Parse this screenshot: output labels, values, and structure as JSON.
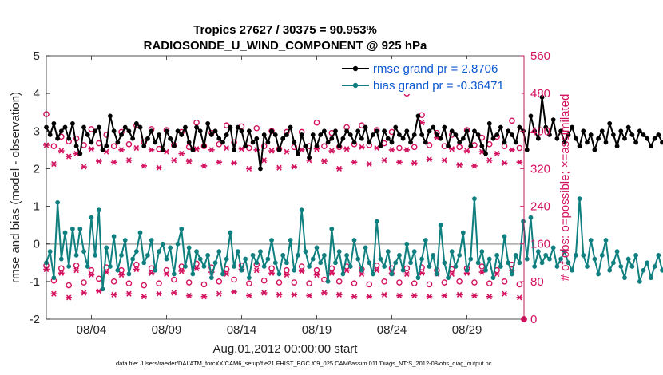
{
  "chart_data": {
    "type": "line",
    "title": [
      "Tropics 27627 / 30375 = 90.953%",
      "RADIOSONDE_U_WIND_COMPONENT @ 925 hPa"
    ],
    "xlabel": "Aug.01,2012 00:00:00 start",
    "ylabel_left": "rmse and bias (model - observation)",
    "ylabel_right": "# of obs: o=possible; ×=assimilated",
    "footer": "data file: /Users/raeder/DAI/ATM_forcXX/CAM6_setup/f.e21.FHIST_BGC.f09_025.CAM6assim.011/Diags_NTrS_2012-08/obs_diag_output.nc",
    "x_tick_labels": [
      "08/04",
      "08/09",
      "08/14",
      "08/19",
      "08/24",
      "08/29"
    ],
    "x_tick_days": [
      4,
      9,
      14,
      19,
      24,
      29
    ],
    "xlim_days": [
      1,
      32.8
    ],
    "ylim_left": [
      -2,
      5
    ],
    "y_ticks_left": [
      -2,
      -1,
      0,
      1,
      2,
      3,
      4,
      5
    ],
    "ylim_right": [
      0,
      560
    ],
    "y_ticks_right": [
      0,
      80,
      160,
      240,
      320,
      400,
      480,
      560
    ],
    "colors": {
      "rmse": "#000000",
      "bias": "#0f7f7f",
      "obs": "#d3125f",
      "zero_line": "#b3b3b3",
      "legend_text": "#0b57d0"
    },
    "series": [
      {
        "name": "rmse grand pr = 2.8706",
        "axis": "left",
        "step_days": 0.25,
        "start_day": 1,
        "values": [
          3.1,
          2.9,
          3.2,
          2.8,
          3.0,
          3.1,
          2.8,
          3.2,
          2.6,
          2.4,
          3.1,
          2.9,
          2.7,
          3.0,
          3.1,
          2.5,
          2.6,
          3.4,
          3.0,
          2.7,
          2.9,
          3.1,
          3.0,
          2.8,
          3.2,
          3.1,
          2.6,
          2.8,
          3.0,
          2.7,
          2.9,
          2.5,
          3.0,
          2.8,
          2.6,
          3.0,
          2.9,
          3.1,
          2.7,
          2.5,
          3.1,
          3.0,
          2.6,
          3.2,
          2.9,
          3.0,
          2.8,
          2.7,
          2.9,
          3.1,
          2.5,
          3.1,
          3.0,
          2.6,
          3.0,
          2.7,
          2.8,
          2.0,
          2.9,
          2.7,
          3.0,
          2.9,
          2.5,
          2.8,
          2.9,
          3.1,
          2.7,
          2.4,
          2.9,
          2.6,
          2.3,
          2.9,
          2.6,
          2.9,
          3.0,
          2.7,
          2.8,
          3.0,
          2.6,
          2.8,
          3.0,
          2.9,
          2.7,
          3.0,
          2.8,
          3.1,
          2.7,
          2.9,
          3.0,
          2.6,
          3.0,
          2.8,
          2.7,
          3.1,
          2.9,
          2.8,
          3.0,
          2.7,
          2.9,
          3.4,
          2.9,
          2.7,
          3.0,
          3.1,
          2.9,
          2.8,
          3.1,
          2.6,
          3.0,
          2.9,
          2.7,
          2.8,
          3.0,
          2.6,
          3.0,
          2.9,
          2.6,
          2.4,
          3.2,
          2.8,
          2.9,
          3.1,
          2.7,
          3.0,
          2.9,
          2.7,
          3.1,
          3.0,
          2.5,
          3.4,
          3.0,
          2.8,
          3.9,
          3.1,
          2.9,
          3.3,
          2.8,
          3.0,
          2.7,
          2.9,
          3.1,
          2.8,
          2.6,
          3.0,
          2.7,
          2.9,
          2.5,
          2.8,
          3.0,
          2.7,
          3.2,
          2.9,
          2.6,
          3.0,
          2.8,
          3.1,
          2.9,
          2.7,
          3.0,
          2.9,
          2.8,
          2.6,
          2.8,
          2.9,
          2.7,
          2.8,
          2.9,
          2.6,
          3.1,
          2.8,
          2.5
        ]
      },
      {
        "name": "bias grand pr = -0.36471",
        "axis": "left",
        "step_days": 0.25,
        "start_day": 1,
        "values": [
          -0.5,
          -0.2,
          -0.9,
          1.1,
          -0.4,
          0.3,
          -0.6,
          0.4,
          -0.3,
          0.4,
          -0.2,
          -0.6,
          0.7,
          -0.3,
          0.9,
          -1.2,
          -0.1,
          -0.6,
          0.2,
          -0.7,
          -0.3,
          0.1,
          -0.8,
          -0.4,
          -0.2,
          0.3,
          -0.5,
          -0.3,
          0.1,
          -0.7,
          -0.2,
          0.0,
          -0.4,
          -0.1,
          -0.8,
          0.0,
          0.4,
          -0.6,
          -0.1,
          -0.8,
          -0.2,
          -0.4,
          -0.6,
          -0.3,
          -0.9,
          -0.5,
          -0.2,
          -0.8,
          -0.4,
          0.3,
          -0.6,
          -0.2,
          -0.7,
          -0.4,
          -0.9,
          -0.3,
          -0.5,
          -0.2,
          -0.6,
          -0.4,
          0.1,
          -0.5,
          -0.8,
          -0.3,
          -0.5,
          0.1,
          -0.7,
          -0.3,
          0.9,
          -0.2,
          -0.6,
          -0.4,
          -0.1,
          -0.5,
          -0.3,
          -1.0,
          0.4,
          -0.5,
          -0.2,
          -0.8,
          -0.3,
          -0.6,
          0.1,
          -0.4,
          -0.7,
          -0.1,
          -0.5,
          -0.8,
          0.6,
          -0.4,
          -0.6,
          -0.2,
          -0.8,
          -0.5,
          -0.3,
          -0.7,
          0.0,
          -0.5,
          -0.2,
          -0.9,
          -0.4,
          0.1,
          -0.6,
          -0.3,
          -0.8,
          0.5,
          -0.5,
          -0.9,
          -0.2,
          -0.6,
          -0.3,
          0.3,
          -0.7,
          -0.4,
          1.2,
          -0.5,
          -0.2,
          -0.7,
          -0.4,
          -0.9,
          -0.3,
          -0.6,
          0.2,
          -0.5,
          -0.8,
          -0.3,
          -0.5,
          0.6,
          -0.4,
          0.7,
          -0.6,
          -0.2,
          -0.5,
          -0.3,
          -0.4,
          -0.1,
          -0.6,
          -0.4,
          -0.2,
          -0.5,
          -0.7,
          -0.3,
          1.2,
          -0.3,
          -0.6,
          0.1,
          -0.4,
          -0.8,
          -0.3,
          0.1,
          -0.7,
          -0.5,
          -0.2,
          -0.6,
          -0.9,
          -0.4,
          -0.6,
          -0.3,
          -1.0,
          -0.7,
          -0.5,
          -0.9,
          -0.6,
          -0.3,
          -0.7,
          -0.5,
          -0.2,
          -0.6,
          -0.4,
          -0.3,
          0.1
        ]
      },
      {
        "name": "possible obs (o)",
        "axis": "right",
        "start_day": 1,
        "step_days": 0.5,
        "values_00z": [
          436,
          388,
          384,
          404,
          392,
          398,
          412,
          404,
          402,
          398,
          418,
          396,
          412,
          410,
          406,
          400,
          398,
          398,
          418,
          396,
          408,
          412,
          402,
          398,
          480,
          434,
          396,
          392,
          402,
          386,
          388,
          422
        ],
        "values_12z": [
          368,
          378,
          370,
          374,
          368,
          372,
          376,
          362,
          370,
          366,
          368,
          372,
          376,
          364,
          368,
          362,
          366,
          368,
          368,
          366,
          372,
          370,
          374,
          364,
          366,
          370,
          368,
          366,
          370,
          372,
          368,
          364
        ],
        "low_00z": [
          114,
          108,
          114,
          104,
          110,
          104,
          116,
          108,
          104,
          112,
          118,
          110,
          106,
          114,
          116,
          108,
          104,
          112,
          104,
          108,
          112,
          106,
          114,
          108,
          108,
          110,
          104,
          106,
          108,
          112,
          104,
          116
        ],
        "low_12z": [
          82,
          72,
          78,
          86,
          80,
          76,
          72,
          76,
          84,
          78,
          74,
          80,
          84,
          76,
          82,
          78,
          78,
          76,
          84,
          80,
          76,
          74,
          80,
          78,
          76,
          74,
          78,
          80,
          78,
          76,
          80,
          74
        ]
      },
      {
        "name": "assimilated obs (×)",
        "axis": "right",
        "start_day": 1,
        "step_days": 0.5,
        "values_00z": [
          370,
          358,
          352,
          362,
          356,
          360,
          364,
          360,
          356,
          352,
          362,
          360,
          364,
          362,
          360,
          358,
          356,
          360,
          362,
          358,
          362,
          366,
          364,
          360,
          360,
          418,
          386,
          362,
          358,
          356,
          352,
          360
        ],
        "values_12z": [
          330,
          346,
          324,
          336,
          334,
          338,
          326,
          322,
          338,
          336,
          326,
          334,
          332,
          320,
          338,
          322,
          324,
          338,
          336,
          320,
          334,
          330,
          338,
          334,
          332,
          340,
          338,
          328,
          326,
          338,
          332,
          334
        ],
        "low_00z": [
          106,
          98,
          104,
          94,
          100,
          94,
          106,
          98,
          96,
          102,
          108,
          100,
          96,
          106,
          104,
          98,
          94,
          102,
          94,
          98,
          104,
          96,
          104,
          98,
          96,
          98,
          96,
          96,
          98,
          100,
          96,
          104
        ],
        "low_12z": [
          54,
          46,
          56,
          60,
          52,
          54,
          48,
          54,
          56,
          50,
          48,
          54,
          58,
          50,
          56,
          52,
          52,
          50,
          56,
          52,
          48,
          48,
          52,
          50,
          50,
          48,
          50,
          52,
          50,
          48,
          54,
          46
        ]
      }
    ],
    "legend": [
      "rmse grand pr = 2.8706",
      "bias grand pr = -0.36471"
    ],
    "legend_position": "top-right",
    "zero_line": 0
  }
}
